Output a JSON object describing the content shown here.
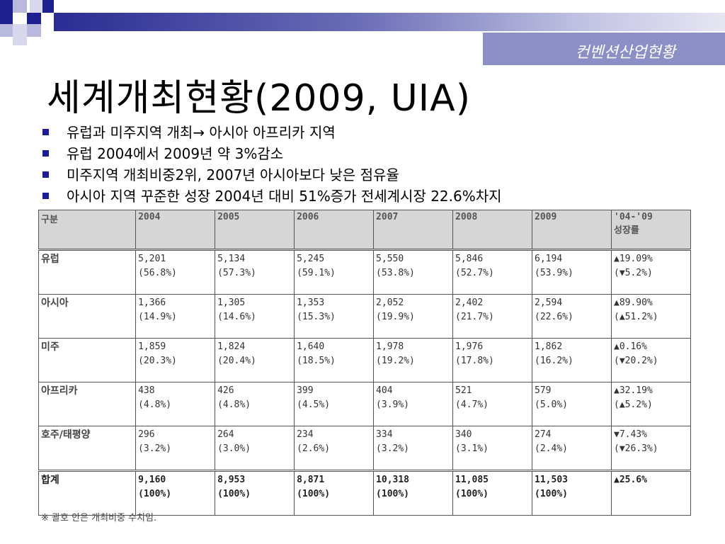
{
  "subtitle": "컨벤션산업현황",
  "title": "세계개최현황(2009, UIA)",
  "bullets": [
    "유럽과 미주지역 개최→ 아시아 아프리카 지역",
    "유럽 2004에서 2009년 약 3%감소",
    "미주지역 개최비중2위, 2007년 아시아보다 낮은 점유율",
    "아시아 지역 꾸준한 성장 2004년 대비 51%증가 전세계시장 22.6%차지"
  ],
  "table": {
    "headers": [
      "구분",
      "2004",
      "2005",
      "2006",
      "2007",
      "2008",
      "2009",
      "'04-'09",
      "성장률"
    ],
    "rows": [
      {
        "region": "유럽",
        "cells": [
          [
            "5,201",
            "(56.8%)"
          ],
          [
            "5,134",
            "(57.3%)"
          ],
          [
            "5,245",
            "(59.1%)"
          ],
          [
            "5,550",
            "(53.8%)"
          ],
          [
            "5,846",
            "(52.7%)"
          ],
          [
            "6,194",
            "(53.9%)"
          ],
          [
            "▲19.09%",
            "(▼5.2%)"
          ]
        ]
      },
      {
        "region": "아시아",
        "cells": [
          [
            "1,366",
            "(14.9%)"
          ],
          [
            "1,305",
            "(14.6%)"
          ],
          [
            "1,353",
            "(15.3%)"
          ],
          [
            "2,052",
            "(19.9%)"
          ],
          [
            "2,402",
            "(21.7%)"
          ],
          [
            "2,594",
            "(22.6%)"
          ],
          [
            "▲89.90%",
            "(▲51.2%)"
          ]
        ]
      },
      {
        "region": "미주",
        "cells": [
          [
            "1,859",
            "(20.3%)"
          ],
          [
            "1,824",
            "(20.4%)"
          ],
          [
            "1,640",
            "(18.5%)"
          ],
          [
            "1,978",
            "(19.2%)"
          ],
          [
            "1,976",
            "(17.8%)"
          ],
          [
            "1,862",
            "(16.2%)"
          ],
          [
            "▲0.16%",
            "(▼20.2%)"
          ]
        ]
      },
      {
        "region": "아프리카",
        "cells": [
          [
            "438",
            "(4.8%)"
          ],
          [
            "426",
            "(4.8%)"
          ],
          [
            "399",
            "(4.5%)"
          ],
          [
            "404",
            "(3.9%)"
          ],
          [
            "521",
            "(4.7%)"
          ],
          [
            "579",
            "(5.0%)"
          ],
          [
            "▲32.19%",
            "(▲5.2%)"
          ]
        ]
      },
      {
        "region": "호주/태평양",
        "cells": [
          [
            "296",
            "(3.2%)"
          ],
          [
            "264",
            "(3.0%)"
          ],
          [
            "234",
            "(2.6%)"
          ],
          [
            "334",
            "(3.2%)"
          ],
          [
            "340",
            "(3.1%)"
          ],
          [
            "274",
            "(2.4%)"
          ],
          [
            "▼7.43%",
            "(▼26.3%)"
          ]
        ]
      },
      {
        "region": "합계",
        "cells": [
          [
            "9,160",
            "(100%)"
          ],
          [
            "8,953",
            "(100%)"
          ],
          [
            "8,871",
            "(100%)"
          ],
          [
            "10,318",
            "(100%)"
          ],
          [
            "11,085",
            "(100%)"
          ],
          [
            "11,503",
            "(100%)"
          ],
          [
            "▲25.6%",
            ""
          ]
        ]
      }
    ]
  },
  "note": "※ 괄호 안은 개최비중 수치임.",
  "colors": {
    "accent": "#2a2c92",
    "subtitle_bg": "#8c8ec6",
    "bullet": "#1c1c9a"
  }
}
